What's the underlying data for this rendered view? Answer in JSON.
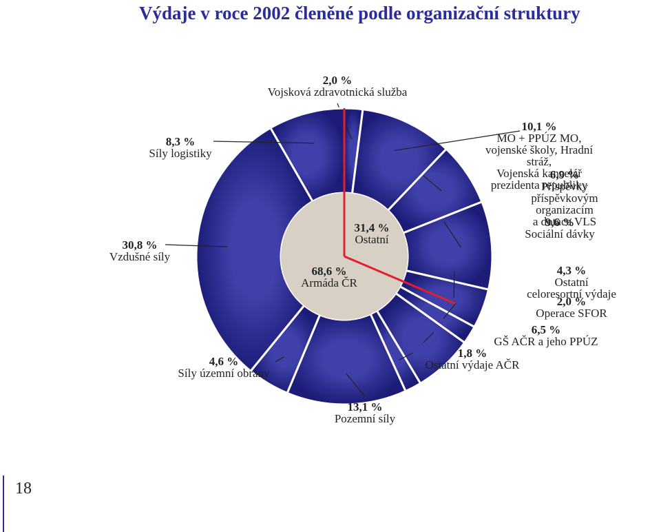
{
  "chart_data": {
    "type": "donut",
    "title": "Výdaje v roce 2002 členěné podle organizační struktury",
    "categories": [
      "Vojsková zdravotnická služba",
      "MO + PPÚZ MO, vojenské školy, Hradní stráž,\nVojenská kancelář prezidenta republiky",
      "Příspěvky příspěvkovým organizacím\na dotace VLS",
      "Sociální dávky",
      "Ostatní celoresortní výdaje",
      "Operace SFOR",
      "GŠ AČR a jeho PPÚZ",
      "Ostatní výdaje AČR",
      "Pozemní síly",
      "Síly územní obrany",
      "Vzdušné síly",
      "Síly logistiky"
    ],
    "values": [
      2.0,
      10.1,
      6.9,
      9.6,
      4.3,
      2.0,
      6.5,
      1.8,
      13.1,
      4.6,
      30.8,
      8.3
    ],
    "value_labels": [
      "2,0 %",
      "10,1 %",
      "6,9 %",
      "9,6 %",
      "4,3 %",
      "2,0 %",
      "6,5 %",
      "1,8 %",
      "13,1 %",
      "4,6 %",
      "30,8 %",
      "8,3 %"
    ],
    "color": "#2c2c92",
    "inner": {
      "categories": [
        "Ostatní",
        "Armáda ČR"
      ],
      "values": [
        31.4,
        68.6
      ],
      "value_labels": [
        "31,4 %",
        "68,6 %"
      ],
      "color": "#d8cfc5",
      "divider_color": "#e0202a"
    }
  },
  "page_number": "18"
}
